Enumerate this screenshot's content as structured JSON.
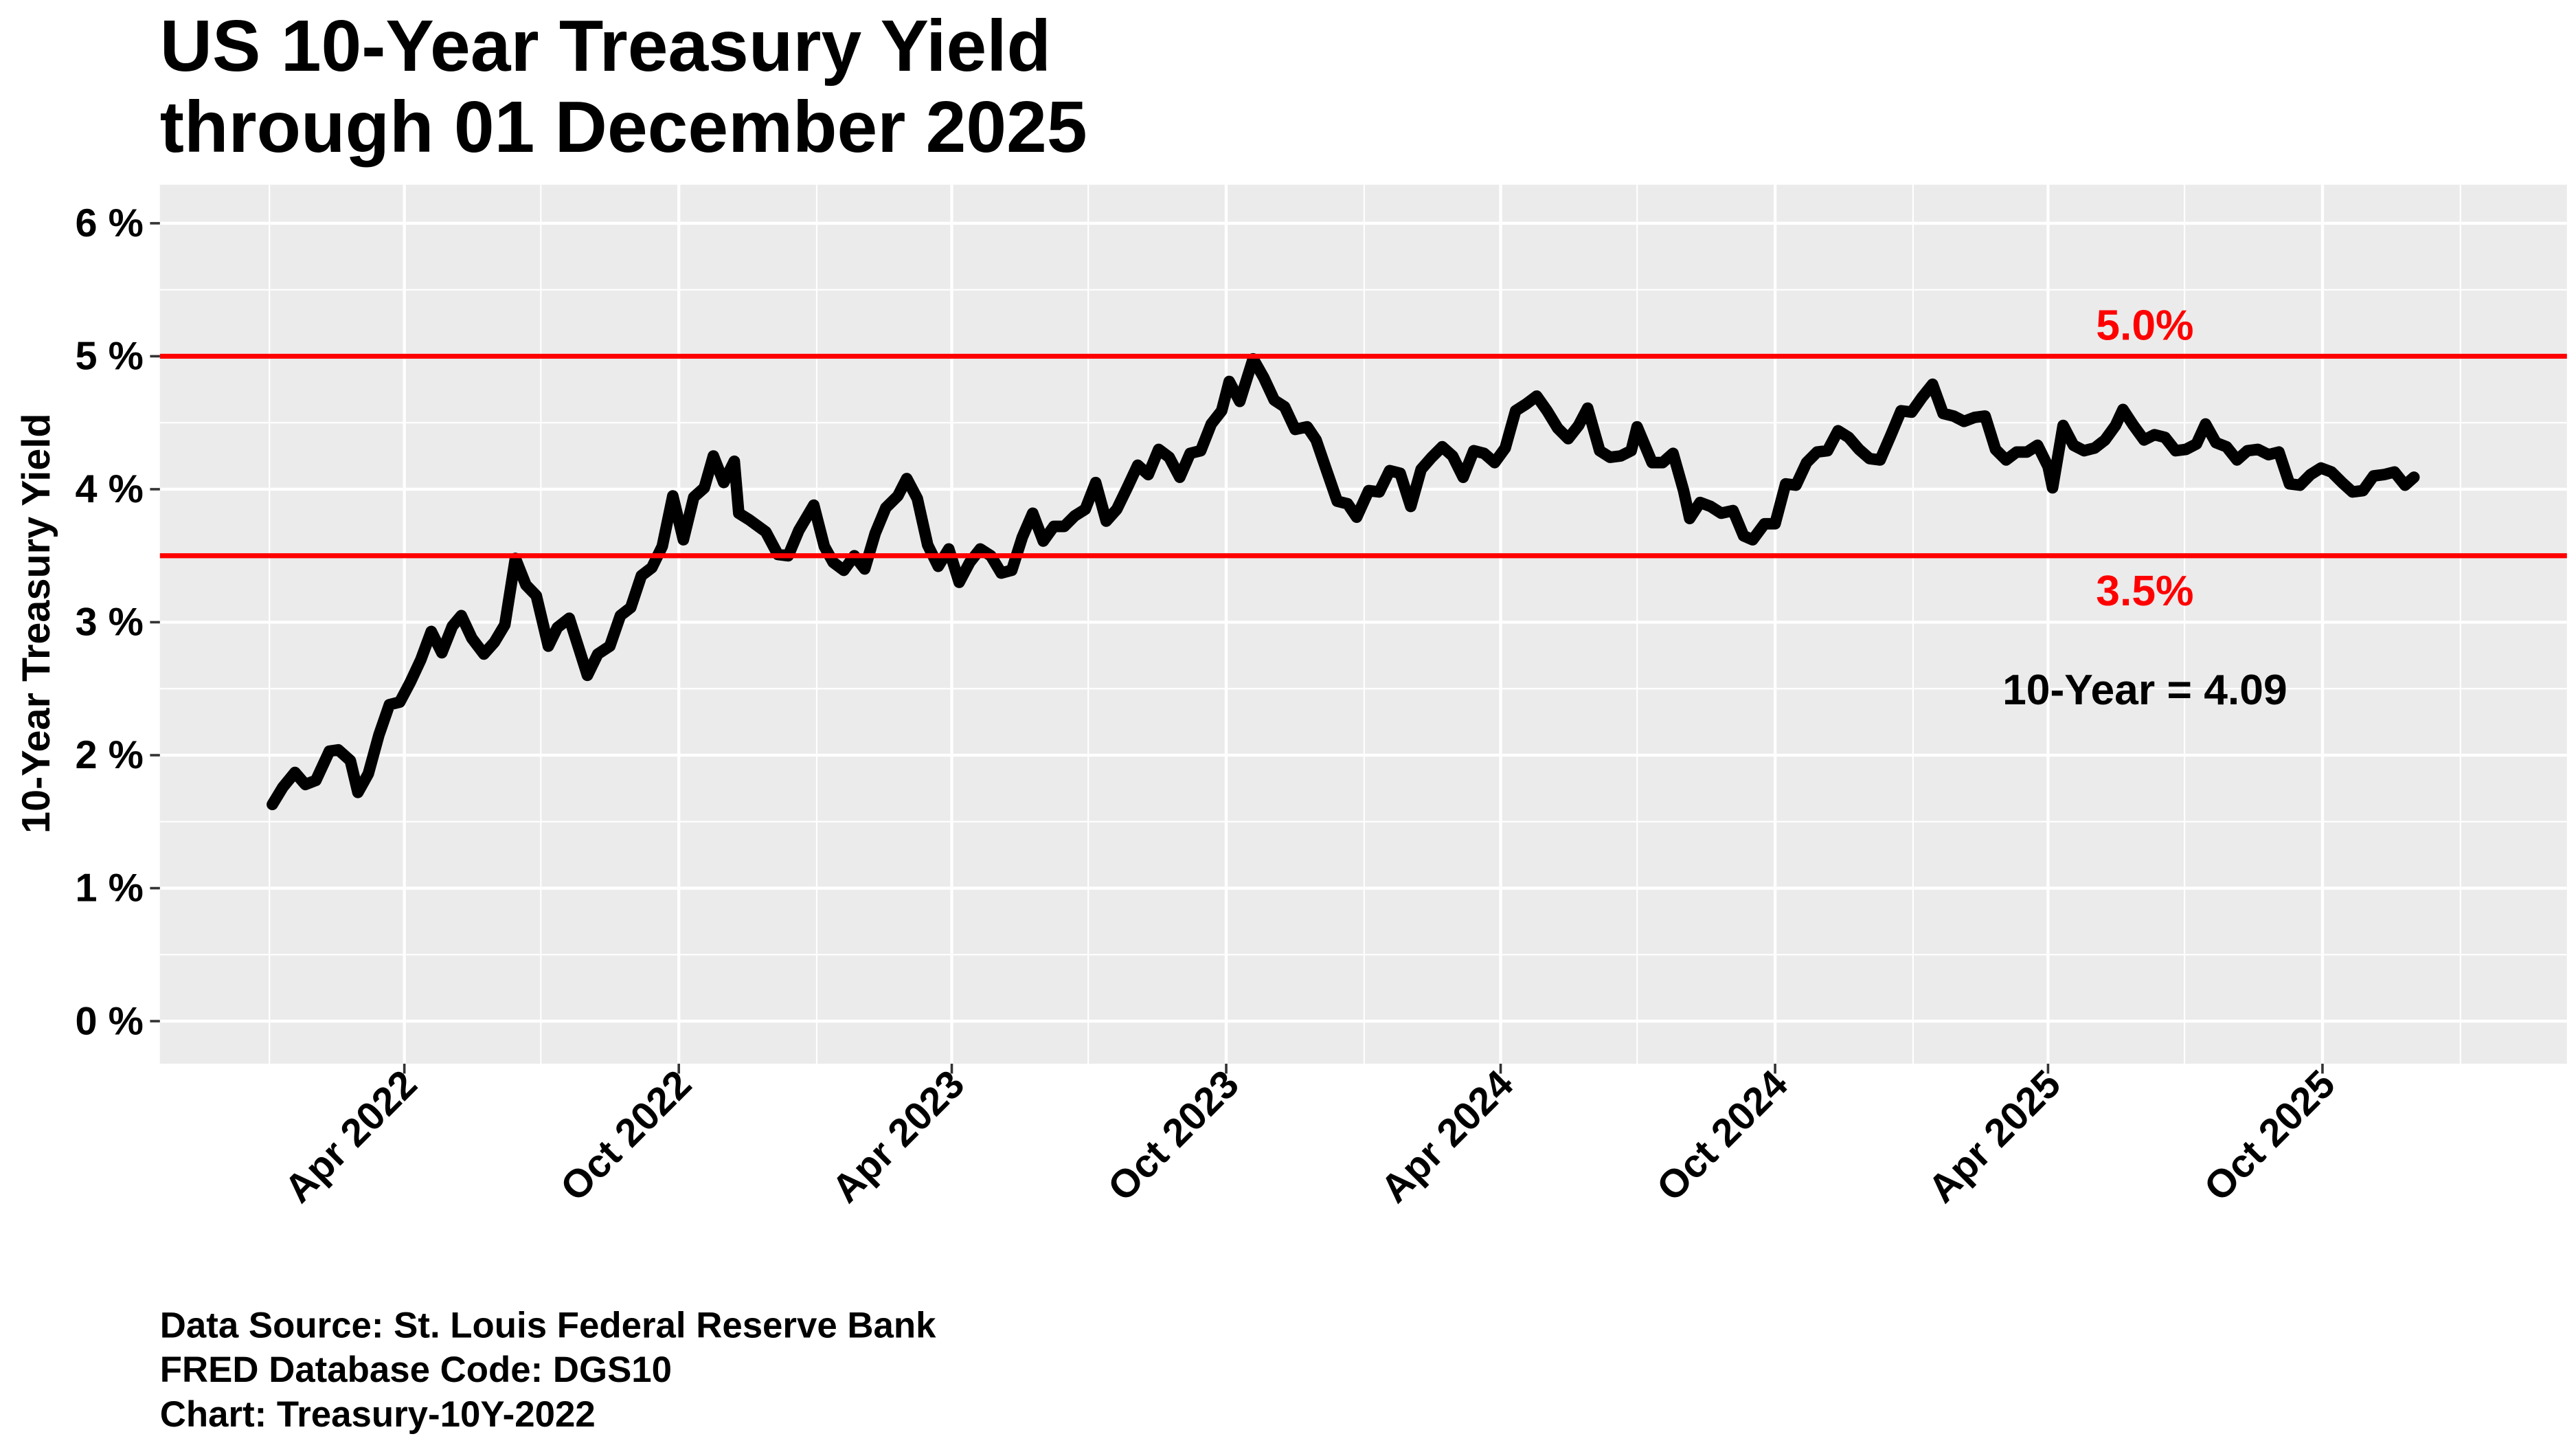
{
  "chart_data": {
    "type": "line",
    "title_lines": [
      "US 10-Year Treasury Yield",
      "through 01 December 2025"
    ],
    "xlabel": "",
    "ylabel": "10-Year Treasury Yield",
    "ylim": [
      -0.32,
      6.29
    ],
    "xlim": [
      "2021-10-20",
      "2026-03-13"
    ],
    "grid": true,
    "legend": "none",
    "y_ticks": [
      0,
      1,
      2,
      3,
      4,
      5,
      6
    ],
    "y_tick_labels": [
      "0 %",
      "1 %",
      "2 %",
      "3 %",
      "4 %",
      "5 %",
      "6 %"
    ],
    "x_ticks": [
      "2022-04-01",
      "2022-10-01",
      "2023-04-01",
      "2023-10-01",
      "2024-04-01",
      "2024-10-01",
      "2025-04-01",
      "2025-10-01"
    ],
    "x_tick_labels": [
      "Apr 2022",
      "Oct 2022",
      "Apr 2023",
      "Oct 2023",
      "Apr 2024",
      "Oct 2024",
      "Apr 2025",
      "Oct 2025"
    ],
    "x_minor_ticks": [
      "2022-01-01",
      "2022-07-01",
      "2023-01-01",
      "2023-07-01",
      "2024-01-01",
      "2024-07-01",
      "2025-01-01",
      "2025-07-01",
      "2026-01-01"
    ],
    "reference_lines": [
      {
        "value": 5.0,
        "label": "5.0%",
        "color": "#FF0000"
      },
      {
        "value": 3.5,
        "label": "3.5%",
        "color": "#FF0000"
      }
    ],
    "annotation": "10-Year = 4.09",
    "colors": {
      "panel": "#EBEBEB",
      "grid": "#FFFFFF",
      "line": "#000000",
      "reference": "#FF0000"
    },
    "series": [
      {
        "points": [
          [
            "2022-01-03",
            1.63
          ],
          [
            "2022-01-10",
            1.76
          ],
          [
            "2022-01-18",
            1.87
          ],
          [
            "2022-01-25",
            1.78
          ],
          [
            "2022-02-01",
            1.81
          ],
          [
            "2022-02-10",
            2.03
          ],
          [
            "2022-02-16",
            2.04
          ],
          [
            "2022-02-24",
            1.96
          ],
          [
            "2022-03-01",
            1.72
          ],
          [
            "2022-03-08",
            1.86
          ],
          [
            "2022-03-15",
            2.15
          ],
          [
            "2022-03-22",
            2.38
          ],
          [
            "2022-03-29",
            2.4
          ],
          [
            "2022-04-05",
            2.55
          ],
          [
            "2022-04-12",
            2.72
          ],
          [
            "2022-04-19",
            2.93
          ],
          [
            "2022-04-26",
            2.77
          ],
          [
            "2022-05-03",
            2.97
          ],
          [
            "2022-05-09",
            3.05
          ],
          [
            "2022-05-16",
            2.88
          ],
          [
            "2022-05-24",
            2.76
          ],
          [
            "2022-05-31",
            2.85
          ],
          [
            "2022-06-07",
            2.98
          ],
          [
            "2022-06-14",
            3.48
          ],
          [
            "2022-06-21",
            3.28
          ],
          [
            "2022-06-28",
            3.2
          ],
          [
            "2022-07-06",
            2.82
          ],
          [
            "2022-07-12",
            2.96
          ],
          [
            "2022-07-20",
            3.03
          ],
          [
            "2022-07-27",
            2.78
          ],
          [
            "2022-08-01",
            2.6
          ],
          [
            "2022-08-08",
            2.76
          ],
          [
            "2022-08-16",
            2.82
          ],
          [
            "2022-08-23",
            3.05
          ],
          [
            "2022-08-30",
            3.11
          ],
          [
            "2022-09-06",
            3.35
          ],
          [
            "2022-09-13",
            3.41
          ],
          [
            "2022-09-20",
            3.57
          ],
          [
            "2022-09-27",
            3.95
          ],
          [
            "2022-10-04",
            3.62
          ],
          [
            "2022-10-11",
            3.94
          ],
          [
            "2022-10-18",
            4.01
          ],
          [
            "2022-10-24",
            4.25
          ],
          [
            "2022-10-31",
            4.05
          ],
          [
            "2022-11-07",
            4.21
          ],
          [
            "2022-11-10",
            3.82
          ],
          [
            "2022-11-17",
            3.77
          ],
          [
            "2022-11-28",
            3.68
          ],
          [
            "2022-12-06",
            3.51
          ],
          [
            "2022-12-13",
            3.5
          ],
          [
            "2022-12-20",
            3.69
          ],
          [
            "2022-12-30",
            3.88
          ],
          [
            "2023-01-06",
            3.57
          ],
          [
            "2023-01-12",
            3.45
          ],
          [
            "2023-01-19",
            3.39
          ],
          [
            "2023-01-26",
            3.5
          ],
          [
            "2023-02-02",
            3.4
          ],
          [
            "2023-02-09",
            3.67
          ],
          [
            "2023-02-16",
            3.86
          ],
          [
            "2023-02-24",
            3.95
          ],
          [
            "2023-03-02",
            4.08
          ],
          [
            "2023-03-09",
            3.93
          ],
          [
            "2023-03-16",
            3.58
          ],
          [
            "2023-03-23",
            3.42
          ],
          [
            "2023-03-30",
            3.55
          ],
          [
            "2023-04-06",
            3.3
          ],
          [
            "2023-04-13",
            3.45
          ],
          [
            "2023-04-20",
            3.55
          ],
          [
            "2023-04-27",
            3.5
          ],
          [
            "2023-05-04",
            3.37
          ],
          [
            "2023-05-11",
            3.39
          ],
          [
            "2023-05-18",
            3.64
          ],
          [
            "2023-05-25",
            3.82
          ],
          [
            "2023-06-01",
            3.61
          ],
          [
            "2023-06-08",
            3.72
          ],
          [
            "2023-06-15",
            3.72
          ],
          [
            "2023-06-22",
            3.8
          ],
          [
            "2023-06-29",
            3.85
          ],
          [
            "2023-07-06",
            4.05
          ],
          [
            "2023-07-13",
            3.76
          ],
          [
            "2023-07-20",
            3.85
          ],
          [
            "2023-07-27",
            4.01
          ],
          [
            "2023-08-03",
            4.18
          ],
          [
            "2023-08-10",
            4.11
          ],
          [
            "2023-08-17",
            4.3
          ],
          [
            "2023-08-24",
            4.24
          ],
          [
            "2023-08-31",
            4.09
          ],
          [
            "2023-09-07",
            4.27
          ],
          [
            "2023-09-14",
            4.29
          ],
          [
            "2023-09-21",
            4.49
          ],
          [
            "2023-09-28",
            4.59
          ],
          [
            "2023-10-03",
            4.81
          ],
          [
            "2023-10-10",
            4.66
          ],
          [
            "2023-10-19",
            4.98
          ],
          [
            "2023-10-26",
            4.84
          ],
          [
            "2023-11-02",
            4.67
          ],
          [
            "2023-11-09",
            4.62
          ],
          [
            "2023-11-16",
            4.45
          ],
          [
            "2023-11-24",
            4.47
          ],
          [
            "2023-11-30",
            4.37
          ],
          [
            "2023-12-07",
            4.14
          ],
          [
            "2023-12-14",
            3.91
          ],
          [
            "2023-12-21",
            3.89
          ],
          [
            "2023-12-27",
            3.79
          ],
          [
            "2024-01-04",
            3.99
          ],
          [
            "2024-01-11",
            3.98
          ],
          [
            "2024-01-18",
            4.14
          ],
          [
            "2024-01-25",
            4.12
          ],
          [
            "2024-02-01",
            3.87
          ],
          [
            "2024-02-08",
            4.15
          ],
          [
            "2024-02-15",
            4.24
          ],
          [
            "2024-02-22",
            4.32
          ],
          [
            "2024-02-29",
            4.25
          ],
          [
            "2024-03-07",
            4.09
          ],
          [
            "2024-03-14",
            4.29
          ],
          [
            "2024-03-21",
            4.27
          ],
          [
            "2024-03-28",
            4.2
          ],
          [
            "2024-04-04",
            4.31
          ],
          [
            "2024-04-11",
            4.59
          ],
          [
            "2024-04-18",
            4.64
          ],
          [
            "2024-04-25",
            4.7
          ],
          [
            "2024-05-02",
            4.59
          ],
          [
            "2024-05-09",
            4.46
          ],
          [
            "2024-05-16",
            4.38
          ],
          [
            "2024-05-23",
            4.48
          ],
          [
            "2024-05-29",
            4.61
          ],
          [
            "2024-06-06",
            4.29
          ],
          [
            "2024-06-13",
            4.24
          ],
          [
            "2024-06-20",
            4.25
          ],
          [
            "2024-06-27",
            4.29
          ],
          [
            "2024-07-01",
            4.47
          ],
          [
            "2024-07-11",
            4.2
          ],
          [
            "2024-07-18",
            4.2
          ],
          [
            "2024-07-25",
            4.27
          ],
          [
            "2024-08-01",
            3.99
          ],
          [
            "2024-08-05",
            3.78
          ],
          [
            "2024-08-12",
            3.9
          ],
          [
            "2024-08-19",
            3.87
          ],
          [
            "2024-08-26",
            3.82
          ],
          [
            "2024-09-03",
            3.84
          ],
          [
            "2024-09-10",
            3.65
          ],
          [
            "2024-09-16",
            3.62
          ],
          [
            "2024-09-24",
            3.74
          ],
          [
            "2024-10-01",
            3.74
          ],
          [
            "2024-10-08",
            4.04
          ],
          [
            "2024-10-15",
            4.03
          ],
          [
            "2024-10-22",
            4.2
          ],
          [
            "2024-10-29",
            4.28
          ],
          [
            "2024-11-05",
            4.29
          ],
          [
            "2024-11-12",
            4.44
          ],
          [
            "2024-11-19",
            4.39
          ],
          [
            "2024-11-26",
            4.3
          ],
          [
            "2024-12-03",
            4.23
          ],
          [
            "2024-12-10",
            4.22
          ],
          [
            "2024-12-17",
            4.4
          ],
          [
            "2024-12-24",
            4.59
          ],
          [
            "2024-12-31",
            4.58
          ],
          [
            "2025-01-07",
            4.69
          ],
          [
            "2025-01-14",
            4.79
          ],
          [
            "2025-01-21",
            4.57
          ],
          [
            "2025-01-28",
            4.55
          ],
          [
            "2025-02-04",
            4.51
          ],
          [
            "2025-02-11",
            4.54
          ],
          [
            "2025-02-18",
            4.55
          ],
          [
            "2025-02-25",
            4.3
          ],
          [
            "2025-03-04",
            4.22
          ],
          [
            "2025-03-11",
            4.28
          ],
          [
            "2025-03-18",
            4.28
          ],
          [
            "2025-03-25",
            4.33
          ],
          [
            "2025-04-01",
            4.17
          ],
          [
            "2025-04-04",
            4.01
          ],
          [
            "2025-04-11",
            4.48
          ],
          [
            "2025-04-18",
            4.33
          ],
          [
            "2025-04-25",
            4.29
          ],
          [
            "2025-05-02",
            4.31
          ],
          [
            "2025-05-09",
            4.37
          ],
          [
            "2025-05-16",
            4.48
          ],
          [
            "2025-05-21",
            4.6
          ],
          [
            "2025-05-28",
            4.48
          ],
          [
            "2025-06-04",
            4.37
          ],
          [
            "2025-06-11",
            4.41
          ],
          [
            "2025-06-18",
            4.39
          ],
          [
            "2025-06-25",
            4.29
          ],
          [
            "2025-07-02",
            4.3
          ],
          [
            "2025-07-09",
            4.34
          ],
          [
            "2025-07-15",
            4.49
          ],
          [
            "2025-07-22",
            4.35
          ],
          [
            "2025-07-29",
            4.32
          ],
          [
            "2025-08-05",
            4.22
          ],
          [
            "2025-08-12",
            4.29
          ],
          [
            "2025-08-19",
            4.3
          ],
          [
            "2025-08-26",
            4.26
          ],
          [
            "2025-09-02",
            4.28
          ],
          [
            "2025-09-09",
            4.04
          ],
          [
            "2025-09-16",
            4.03
          ],
          [
            "2025-09-23",
            4.11
          ],
          [
            "2025-09-30",
            4.16
          ],
          [
            "2025-10-07",
            4.13
          ],
          [
            "2025-10-14",
            4.05
          ],
          [
            "2025-10-21",
            3.98
          ],
          [
            "2025-10-28",
            3.99
          ],
          [
            "2025-11-04",
            4.1
          ],
          [
            "2025-11-11",
            4.11
          ],
          [
            "2025-11-18",
            4.13
          ],
          [
            "2025-11-25",
            4.03
          ],
          [
            "2025-12-01",
            4.09
          ]
        ]
      }
    ]
  },
  "caption_lines": [
    "Data Source: St. Louis Federal Reserve Bank",
    "FRED Database Code: DGS10",
    "Chart: Treasury-10Y-2022"
  ]
}
